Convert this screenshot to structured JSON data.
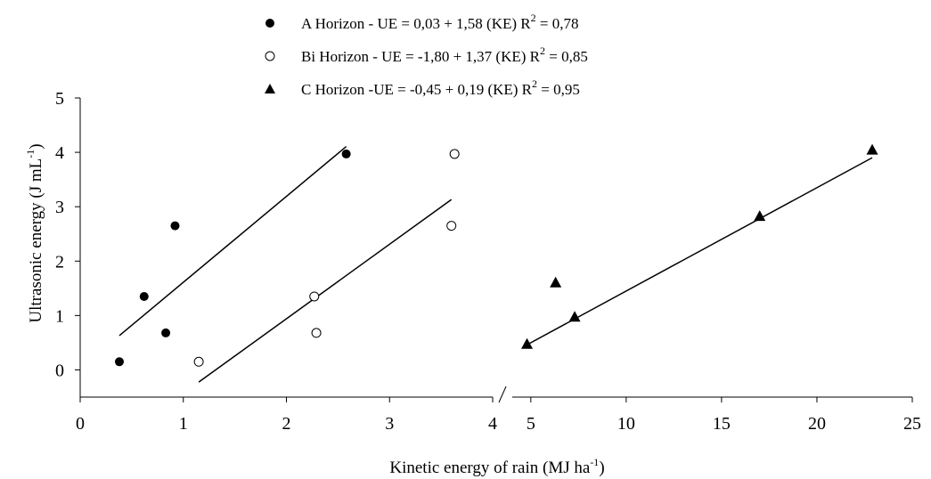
{
  "chart_data": {
    "type": "scatter",
    "legend": [
      {
        "series": "A",
        "text": "A Horizon - UE = 0,03 + 1,58 (KE) R",
        "sup": "2",
        "tail": " = 0,78"
      },
      {
        "series": "Bi",
        "text": "Bi Horizon - UE = -1,80 + 1,37 (KE) R",
        "sup": "2",
        "tail": " = 0,85"
      },
      {
        "series": "C",
        "text": "C Horizon -UE = -0,45 + 0,19 (KE) R",
        "sup": "2",
        "tail": " = 0,95"
      }
    ],
    "xlabel": {
      "text": "Kinetic energy of rain (MJ ha",
      "sup": "-1",
      "tail": ")"
    },
    "ylabel": {
      "text": "Ultrasonic energy (J mL",
      "sup": "-1",
      "tail": ")"
    },
    "ylim": [
      -0.5,
      5
    ],
    "yticks": [
      "0",
      "1",
      "2",
      "3",
      "4",
      "5"
    ],
    "x_segment_left": {
      "xlim": [
        0,
        4
      ],
      "ticks": [
        "0",
        "1",
        "2",
        "3",
        "4"
      ]
    },
    "x_segment_right": {
      "xlim": [
        3.0,
        25
      ],
      "ticks": [
        "5",
        "10",
        "15",
        "20",
        "25"
      ]
    },
    "axis_break": true,
    "legend_position": "top",
    "grid": false,
    "series": [
      {
        "id": "A",
        "marker": "filled-circle",
        "segment": "left",
        "points": [
          [
            0.38,
            0.15
          ],
          [
            0.62,
            1.35
          ],
          [
            0.83,
            0.68
          ],
          [
            0.92,
            2.65
          ],
          [
            2.58,
            3.97
          ]
        ],
        "fit_x": [
          0.38,
          2.58
        ]
      },
      {
        "id": "Bi",
        "marker": "open-circle",
        "segment": "left",
        "points": [
          [
            1.15,
            0.15
          ],
          [
            2.27,
            1.35
          ],
          [
            2.29,
            0.68
          ],
          [
            3.6,
            2.65
          ],
          [
            3.63,
            3.97
          ]
        ],
        "fit_x": [
          1.15,
          3.6
        ]
      },
      {
        "id": "C",
        "marker": "filled-triangle",
        "segment": "right",
        "points": [
          [
            4.8,
            0.47
          ],
          [
            6.3,
            1.6
          ],
          [
            7.3,
            0.97
          ],
          [
            17.0,
            2.82
          ],
          [
            22.9,
            4.04
          ]
        ],
        "fit_x": [
          4.8,
          22.9
        ]
      }
    ],
    "fits": {
      "A": {
        "intercept": 0.03,
        "slope": 1.58
      },
      "Bi": {
        "intercept": -1.8,
        "slope": 1.37
      },
      "C": {
        "intercept": -0.45,
        "slope": 0.19
      }
    }
  }
}
